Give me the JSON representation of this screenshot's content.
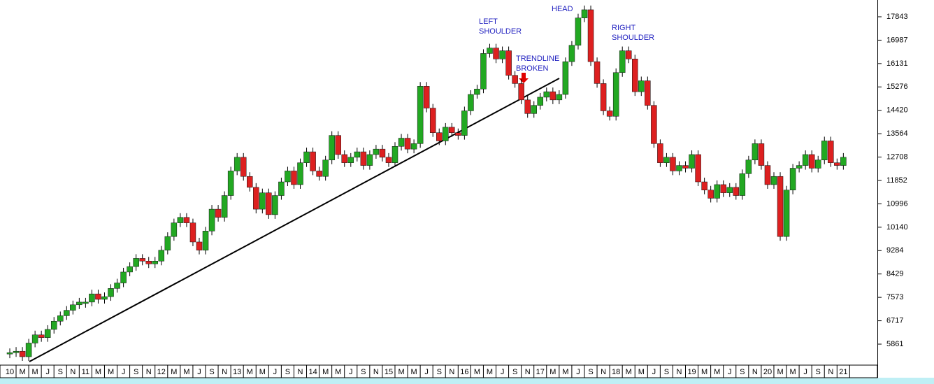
{
  "chart_data": {
    "type": "candlestick",
    "categories": [
      "10",
      null,
      "M",
      null,
      "M",
      null,
      "J",
      null,
      "S",
      null,
      "N",
      null,
      "11",
      null,
      "M",
      null,
      "M",
      null,
      "J",
      null,
      "S",
      null,
      "N",
      null,
      "12",
      null,
      "M",
      null,
      "M",
      null,
      "J",
      null,
      "S",
      null,
      "N",
      null,
      "13",
      null,
      "M",
      null,
      "M",
      null,
      "J",
      null,
      "S",
      null,
      "N",
      null,
      "14",
      null,
      "M",
      null,
      "M",
      null,
      "J",
      null,
      "S",
      null,
      "N",
      null,
      "15",
      null,
      "M",
      null,
      "M",
      null,
      "J",
      null,
      "S",
      null,
      "N",
      null,
      "16",
      null,
      "M",
      null,
      "M",
      null,
      "J",
      null,
      "S",
      null,
      "N",
      null,
      "17",
      null,
      "M",
      null,
      "M",
      null,
      "J",
      null,
      "S",
      null,
      "N",
      null,
      "18",
      null,
      "M",
      null,
      "M",
      null,
      "J",
      null,
      "S",
      null,
      "N",
      null,
      "19",
      null,
      "M",
      null,
      "M",
      null,
      "J",
      null,
      "S",
      null,
      "N",
      null,
      "20",
      null,
      "M",
      null,
      "M",
      null,
      "J",
      null,
      "S",
      null,
      "N",
      null,
      "21"
    ],
    "values": [
      5550,
      5600,
      5400,
      5900,
      6200,
      6100,
      6400,
      6700,
      6900,
      7100,
      7300,
      7400,
      7400,
      7700,
      7500,
      7600,
      7900,
      8100,
      8500,
      8700,
      9000,
      8900,
      8800,
      8900,
      9300,
      9800,
      10300,
      10500,
      10300,
      9600,
      9300,
      10000,
      10800,
      10500,
      11300,
      12200,
      12700,
      12000,
      11600,
      10800,
      11400,
      10600,
      11300,
      11800,
      12200,
      11700,
      12500,
      12900,
      12200,
      12000,
      12600,
      13500,
      12800,
      12500,
      12700,
      12900,
      12400,
      12800,
      13000,
      12700,
      12500,
      13100,
      13400,
      13000,
      13200,
      15300,
      14500,
      13600,
      13300,
      13800,
      13600,
      13500,
      14400,
      15000,
      15200,
      16500,
      16700,
      16300,
      16600,
      15700,
      15400,
      14800,
      14300,
      14600,
      14900,
      15100,
      14800,
      15000,
      16200,
      16800,
      17800,
      18100,
      16200,
      15400,
      14400,
      14200,
      15800,
      16600,
      16300,
      15100,
      15500,
      14600,
      13200,
      12500,
      12700,
      12200,
      12400,
      12300,
      12800,
      11800,
      11500,
      11200,
      11700,
      11400,
      11600,
      11300,
      12100,
      12600,
      13200,
      12400,
      11700,
      12000,
      9800,
      11500,
      12300,
      12400,
      12800,
      12300,
      12600,
      13300,
      12500,
      12400,
      12700
    ],
    "up_color": "#22a822",
    "down_color": "#dd2020",
    "ylim": [
      5093,
      18457
    ],
    "yticks": [
      5861,
      6717,
      7573,
      8429,
      9284,
      10140,
      10996,
      11852,
      12708,
      13564,
      14420,
      15276,
      16131,
      16987,
      17843
    ],
    "annotations": [
      {
        "lines": [
          "LEFT",
          "SHOULDER"
        ]
      },
      {
        "lines": [
          "HEAD"
        ]
      },
      {
        "lines": [
          "RIGHT",
          "SHOULDER"
        ]
      },
      {
        "lines": [
          "TRENDLINE",
          "BROKEN"
        ]
      }
    ]
  }
}
